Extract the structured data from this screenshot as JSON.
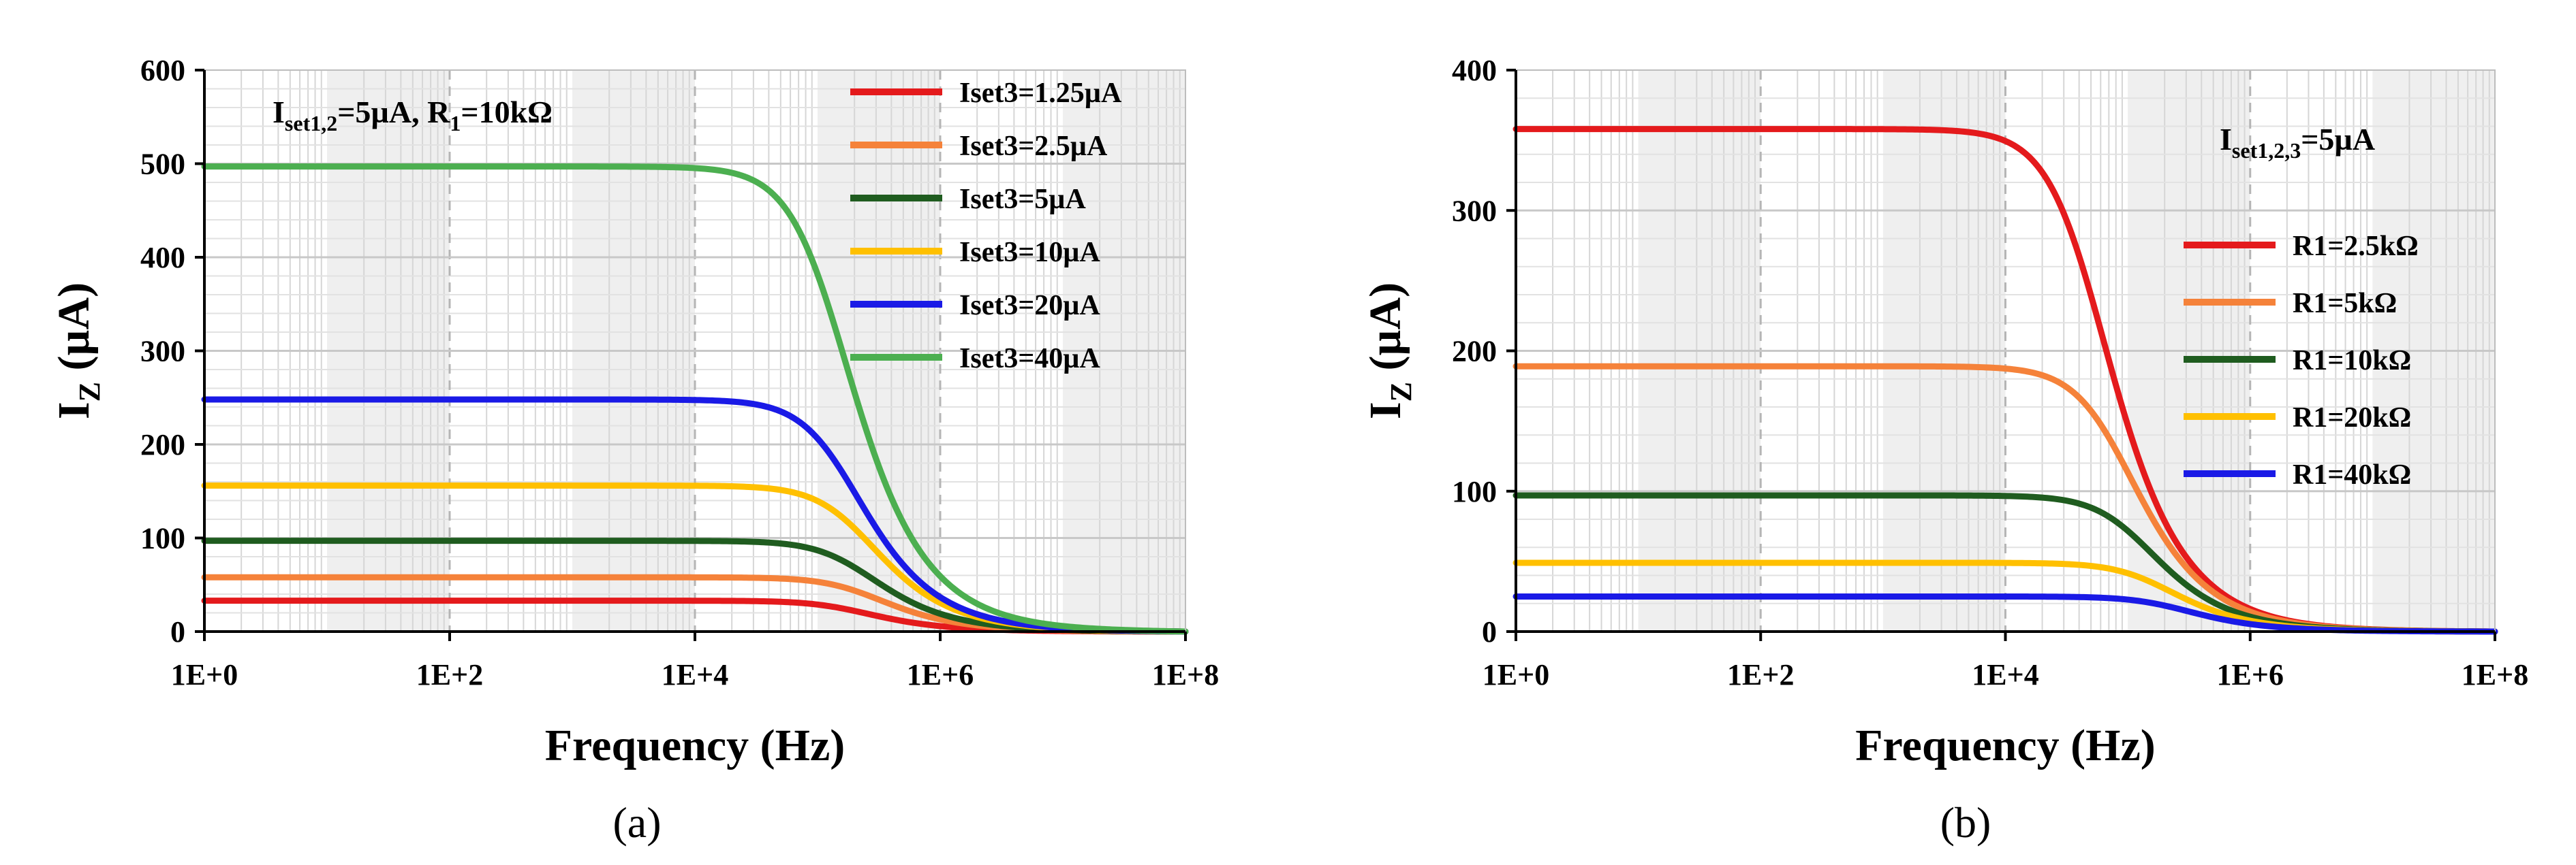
{
  "chart_data": [
    {
      "type": "line",
      "panel_label": "(a)",
      "xlabel": "Frequency (Hz)",
      "ylabel": "I",
      "ylabel_sub": "Z",
      "ylabel_unit": " (µA)",
      "x_scale": "log10",
      "xlim_exp": [
        0,
        8
      ],
      "ylim": [
        0,
        600
      ],
      "x_ticks": [
        "1E+0",
        "1E+2",
        "1E+4",
        "1E+6",
        "1E+8"
      ],
      "y_ticks": [
        "0",
        "100",
        "200",
        "300",
        "400",
        "500",
        "600"
      ],
      "grid": true,
      "legend_position": "top-right",
      "annotation": {
        "p1": "I",
        "s1": "set1,2",
        "p2": "=5µA, R",
        "s2": "1",
        "p3": "=10kΩ"
      },
      "series": [
        {
          "name": "Iset3=1.25µA",
          "color": "#E41A1C",
          "plateau": 33,
          "fc": 180000
        },
        {
          "name": "Iset3=2.5µA",
          "color": "#F5823A",
          "plateau": 58,
          "fc": 230000
        },
        {
          "name": "Iset3=5µA",
          "color": "#1F5C1F",
          "plateau": 97,
          "fc": 200000
        },
        {
          "name": "Iset3=10µA",
          "color": "#FFC000",
          "plateau": 156,
          "fc": 200000
        },
        {
          "name": "Iset3=20µA",
          "color": "#1A1AE6",
          "plateau": 248,
          "fc": 150000
        },
        {
          "name": "Iset3=40µA",
          "color": "#4CAF50",
          "plateau": 497,
          "fc": 120000
        }
      ]
    },
    {
      "type": "line",
      "panel_label": "(b)",
      "xlabel": "Frequency (Hz)",
      "ylabel": "I",
      "ylabel_sub": "Z",
      "ylabel_unit": " (µA)",
      "x_scale": "log10",
      "xlim_exp": [
        0,
        8
      ],
      "ylim": [
        0,
        400
      ],
      "x_ticks": [
        "1E+0",
        "1E+2",
        "1E+4",
        "1E+6",
        "1E+8"
      ],
      "y_ticks": [
        "0",
        "100",
        "200",
        "300",
        "400"
      ],
      "grid": true,
      "legend_position": "right",
      "annotation": {
        "p1": "I",
        "s1": "set1,2,3",
        "p2": "=5µA",
        "s2": "",
        "p3": ""
      },
      "series": [
        {
          "name": "R1=2.5kΩ",
          "color": "#E41A1C",
          "plateau": 358,
          "fc": 45000
        },
        {
          "name": "R1=5kΩ",
          "color": "#F5823A",
          "plateau": 189,
          "fc": 75000
        },
        {
          "name": "R1=10kΩ",
          "color": "#1F5C1F",
          "plateau": 97,
          "fc": 110000
        },
        {
          "name": "R1=20kΩ",
          "color": "#FFC000",
          "plateau": 49,
          "fc": 160000
        },
        {
          "name": "R1=40kΩ",
          "color": "#1A1AE6",
          "plateau": 25,
          "fc": 220000
        }
      ]
    }
  ]
}
